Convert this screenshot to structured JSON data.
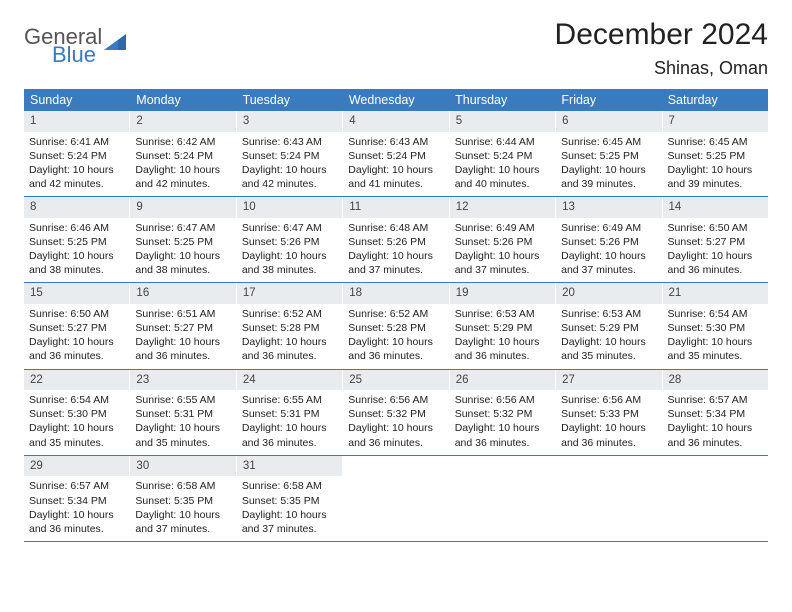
{
  "logo": {
    "text1": "General",
    "text2": "Blue"
  },
  "title": "December 2024",
  "location": "Shinas, Oman",
  "colors": {
    "header_bg": "#3a7bbf",
    "daynum_bg": "#e9ecef",
    "week_border": "#3a7bbf",
    "logo_gray": "#555555",
    "logo_blue": "#3a7bbf"
  },
  "weekdays": [
    "Sunday",
    "Monday",
    "Tuesday",
    "Wednesday",
    "Thursday",
    "Friday",
    "Saturday"
  ],
  "days": [
    {
      "n": 1,
      "sunrise": "6:41 AM",
      "sunset": "5:24 PM",
      "dh": 10,
      "dm": 42
    },
    {
      "n": 2,
      "sunrise": "6:42 AM",
      "sunset": "5:24 PM",
      "dh": 10,
      "dm": 42
    },
    {
      "n": 3,
      "sunrise": "6:43 AM",
      "sunset": "5:24 PM",
      "dh": 10,
      "dm": 42
    },
    {
      "n": 4,
      "sunrise": "6:43 AM",
      "sunset": "5:24 PM",
      "dh": 10,
      "dm": 41
    },
    {
      "n": 5,
      "sunrise": "6:44 AM",
      "sunset": "5:24 PM",
      "dh": 10,
      "dm": 40
    },
    {
      "n": 6,
      "sunrise": "6:45 AM",
      "sunset": "5:25 PM",
      "dh": 10,
      "dm": 39
    },
    {
      "n": 7,
      "sunrise": "6:45 AM",
      "sunset": "5:25 PM",
      "dh": 10,
      "dm": 39
    },
    {
      "n": 8,
      "sunrise": "6:46 AM",
      "sunset": "5:25 PM",
      "dh": 10,
      "dm": 38
    },
    {
      "n": 9,
      "sunrise": "6:47 AM",
      "sunset": "5:25 PM",
      "dh": 10,
      "dm": 38
    },
    {
      "n": 10,
      "sunrise": "6:47 AM",
      "sunset": "5:26 PM",
      "dh": 10,
      "dm": 38
    },
    {
      "n": 11,
      "sunrise": "6:48 AM",
      "sunset": "5:26 PM",
      "dh": 10,
      "dm": 37
    },
    {
      "n": 12,
      "sunrise": "6:49 AM",
      "sunset": "5:26 PM",
      "dh": 10,
      "dm": 37
    },
    {
      "n": 13,
      "sunrise": "6:49 AM",
      "sunset": "5:26 PM",
      "dh": 10,
      "dm": 37
    },
    {
      "n": 14,
      "sunrise": "6:50 AM",
      "sunset": "5:27 PM",
      "dh": 10,
      "dm": 36
    },
    {
      "n": 15,
      "sunrise": "6:50 AM",
      "sunset": "5:27 PM",
      "dh": 10,
      "dm": 36
    },
    {
      "n": 16,
      "sunrise": "6:51 AM",
      "sunset": "5:27 PM",
      "dh": 10,
      "dm": 36
    },
    {
      "n": 17,
      "sunrise": "6:52 AM",
      "sunset": "5:28 PM",
      "dh": 10,
      "dm": 36
    },
    {
      "n": 18,
      "sunrise": "6:52 AM",
      "sunset": "5:28 PM",
      "dh": 10,
      "dm": 36
    },
    {
      "n": 19,
      "sunrise": "6:53 AM",
      "sunset": "5:29 PM",
      "dh": 10,
      "dm": 36
    },
    {
      "n": 20,
      "sunrise": "6:53 AM",
      "sunset": "5:29 PM",
      "dh": 10,
      "dm": 35
    },
    {
      "n": 21,
      "sunrise": "6:54 AM",
      "sunset": "5:30 PM",
      "dh": 10,
      "dm": 35
    },
    {
      "n": 22,
      "sunrise": "6:54 AM",
      "sunset": "5:30 PM",
      "dh": 10,
      "dm": 35
    },
    {
      "n": 23,
      "sunrise": "6:55 AM",
      "sunset": "5:31 PM",
      "dh": 10,
      "dm": 35
    },
    {
      "n": 24,
      "sunrise": "6:55 AM",
      "sunset": "5:31 PM",
      "dh": 10,
      "dm": 36
    },
    {
      "n": 25,
      "sunrise": "6:56 AM",
      "sunset": "5:32 PM",
      "dh": 10,
      "dm": 36
    },
    {
      "n": 26,
      "sunrise": "6:56 AM",
      "sunset": "5:32 PM",
      "dh": 10,
      "dm": 36
    },
    {
      "n": 27,
      "sunrise": "6:56 AM",
      "sunset": "5:33 PM",
      "dh": 10,
      "dm": 36
    },
    {
      "n": 28,
      "sunrise": "6:57 AM",
      "sunset": "5:34 PM",
      "dh": 10,
      "dm": 36
    },
    {
      "n": 29,
      "sunrise": "6:57 AM",
      "sunset": "5:34 PM",
      "dh": 10,
      "dm": 36
    },
    {
      "n": 30,
      "sunrise": "6:58 AM",
      "sunset": "5:35 PM",
      "dh": 10,
      "dm": 37
    },
    {
      "n": 31,
      "sunrise": "6:58 AM",
      "sunset": "5:35 PM",
      "dh": 10,
      "dm": 37
    }
  ],
  "labels": {
    "sunrise_prefix": "Sunrise: ",
    "sunset_prefix": "Sunset: ",
    "daylight_prefix": "Daylight: ",
    "hours_word": " hours",
    "and_word": " and ",
    "minutes_word": " minutes."
  },
  "layout": {
    "lead_blanks": 0,
    "trail_blanks": 4,
    "cols": 7
  }
}
